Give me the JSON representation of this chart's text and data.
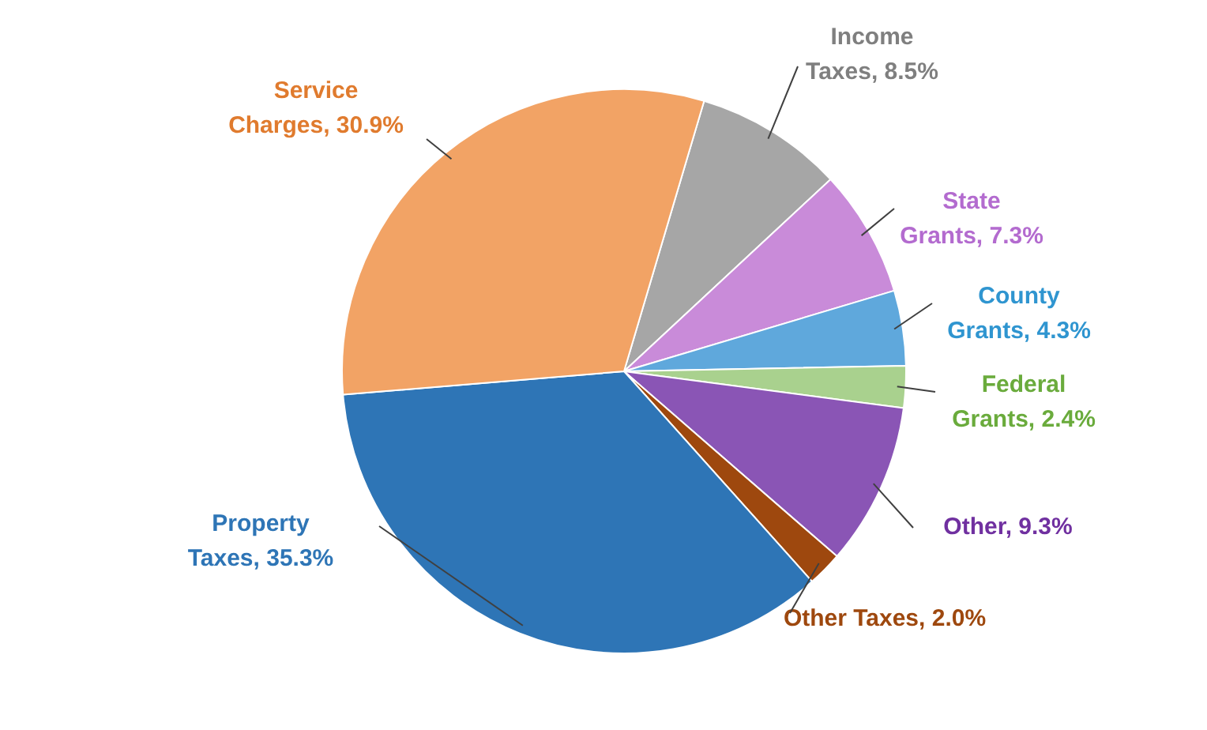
{
  "chart_data": {
    "type": "pie",
    "categories": [
      "Income Taxes",
      "State Grants",
      "County Grants",
      "Federal Grants",
      "Other",
      "Other Taxes",
      "Property Taxes",
      "Service Charges"
    ],
    "values": [
      8.5,
      7.3,
      4.3,
      2.4,
      9.3,
      2.0,
      35.3,
      30.9
    ],
    "value_labels": [
      "8.5%",
      "7.3%",
      "4.3%",
      "2.4%",
      "9.3%",
      "2.0%",
      "35.3%",
      "30.9%"
    ],
    "colors": [
      "#a6a6a6",
      "#c98bd9",
      "#5fa8dc",
      "#a9d18e",
      "#8a55b5",
      "#9e480e",
      "#2e75b6",
      "#f2a365"
    ],
    "legend": false
  }
}
